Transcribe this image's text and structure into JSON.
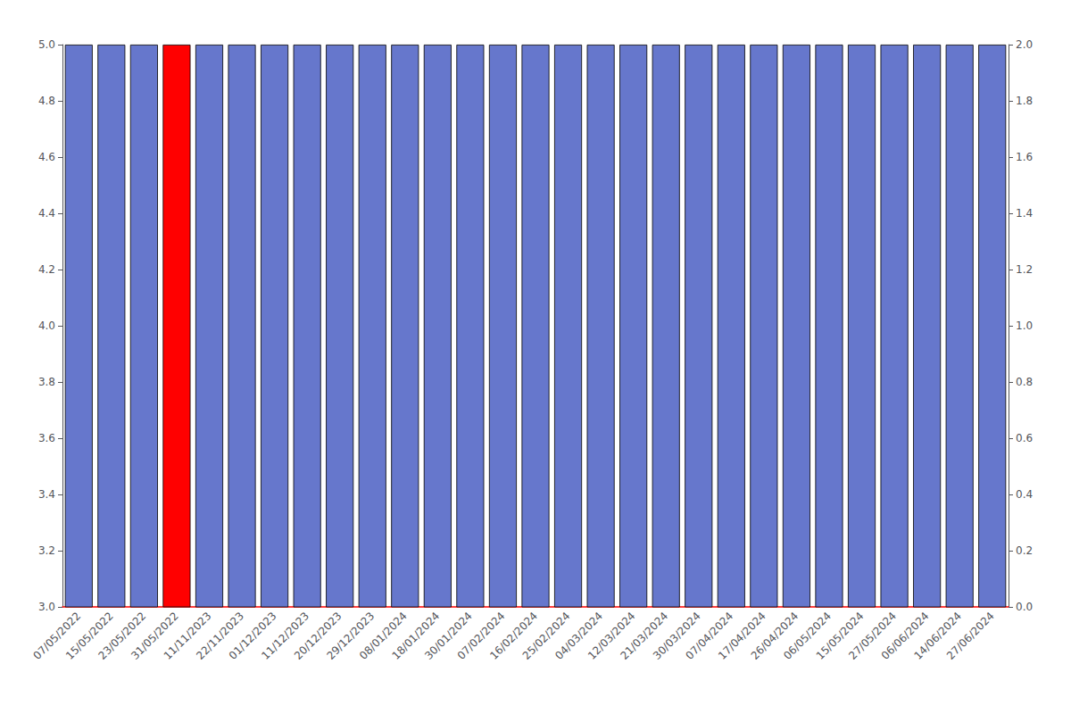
{
  "chart_data": {
    "type": "bar",
    "categories": [
      "07/05/2022",
      "15/05/2022",
      "23/05/2022",
      "31/05/2022",
      "11/11/2023",
      "22/11/2023",
      "01/12/2023",
      "11/12/2023",
      "20/12/2023",
      "29/12/2023",
      "08/01/2024",
      "18/01/2024",
      "30/01/2024",
      "07/02/2024",
      "16/02/2024",
      "25/02/2024",
      "04/03/2024",
      "12/03/2024",
      "21/03/2024",
      "30/03/2024",
      "07/04/2024",
      "17/04/2024",
      "26/04/2024",
      "06/05/2024",
      "15/05/2024",
      "27/05/2024",
      "06/06/2024",
      "14/06/2024",
      "27/06/2024"
    ],
    "values": [
      5.0,
      5.0,
      5.0,
      5.0,
      5.0,
      5.0,
      5.0,
      5.0,
      5.0,
      5.0,
      5.0,
      5.0,
      5.0,
      5.0,
      5.0,
      5.0,
      5.0,
      5.0,
      5.0,
      5.0,
      5.0,
      5.0,
      5.0,
      5.0,
      5.0,
      5.0,
      5.0,
      5.0,
      5.0
    ],
    "colors": [
      "#6677CC",
      "#6677CC",
      "#6677CC",
      "#FF0000",
      "#6677CC",
      "#6677CC",
      "#6677CC",
      "#6677CC",
      "#6677CC",
      "#6677CC",
      "#6677CC",
      "#6677CC",
      "#6677CC",
      "#6677CC",
      "#6677CC",
      "#6677CC",
      "#6677CC",
      "#6677CC",
      "#6677CC",
      "#6677CC",
      "#6677CC",
      "#6677CC",
      "#6677CC",
      "#6677CC",
      "#6677CC",
      "#6677CC",
      "#6677CC",
      "#6677CC",
      "#6677CC"
    ],
    "ylim": [
      3.0,
      5.0
    ],
    "yticks": [
      {
        "value": 3.0,
        "label": "3.0"
      },
      3.2,
      3.4,
      3.6,
      3.8,
      {
        "value": 4.0,
        "label": "4.0"
      },
      4.2,
      4.4,
      4.6,
      4.8,
      {
        "value": 5.0,
        "label": "5.0"
      }
    ],
    "y2lim": [
      0.0,
      2.0
    ],
    "y2ticks": [
      {
        "value": 0.0,
        "label": "0.0"
      },
      0.2,
      0.4,
      0.6,
      0.8,
      {
        "value": 1.0,
        "label": "1.0"
      },
      1.2,
      1.4,
      1.6,
      1.8,
      {
        "value": 2.0,
        "label": "2.0"
      }
    ],
    "grid": false
  }
}
